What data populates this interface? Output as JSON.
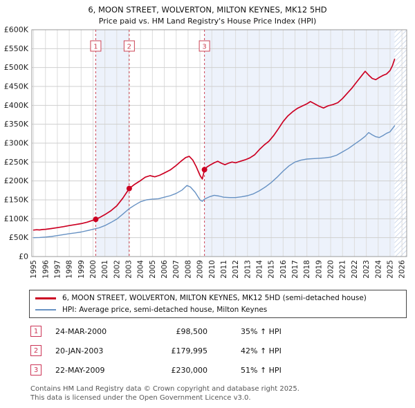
{
  "header": {
    "title": "6, MOON STREET, WOLVERTON, MILTON KEYNES, MK12 5HD",
    "subtitle": "Price paid vs. HM Land Registry's House Price Index (HPI)"
  },
  "chart_data": {
    "type": "line",
    "title": "Price paid vs. HPI",
    "x_range": [
      1994.85,
      2026.4
    ],
    "y_range": [
      0,
      600000
    ],
    "grid": true,
    "legend_position": "bottom",
    "x_ticks": [
      1995,
      1996,
      1997,
      1998,
      1999,
      2000,
      2001,
      2002,
      2003,
      2004,
      2005,
      2006,
      2007,
      2008,
      2009,
      2010,
      2011,
      2012,
      2013,
      2014,
      2015,
      2016,
      2017,
      2018,
      2019,
      2020,
      2021,
      2022,
      2023,
      2024,
      2025,
      2026
    ],
    "y_ticks": [
      [
        0,
        "£0"
      ],
      [
        50000,
        "£50K"
      ],
      [
        100000,
        "£100K"
      ],
      [
        150000,
        "£150K"
      ],
      [
        200000,
        "£200K"
      ],
      [
        250000,
        "£250K"
      ],
      [
        300000,
        "£300K"
      ],
      [
        350000,
        "£350K"
      ],
      [
        400000,
        "£400K"
      ],
      [
        450000,
        "£450K"
      ],
      [
        500000,
        "£500K"
      ],
      [
        550000,
        "£550K"
      ],
      [
        600000,
        "£600K"
      ]
    ],
    "shade_color": "#edf2fb",
    "hatch_color": "#c2cfe6",
    "grid_color_h": "#cfcfcf",
    "grid_color_v": "#dcdcdc",
    "border_color": "#999999",
    "dash_line_color": "#cc4455",
    "shaded_regions": [
      [
        2000.23,
        2003.05
      ],
      [
        2009.38,
        2025.38
      ]
    ],
    "hatch_region": [
      2025.38,
      2026.4
    ],
    "markers": [
      {
        "label": "1",
        "year": 2000.23,
        "value": 98500
      },
      {
        "label": "2",
        "year": 2003.05,
        "value": 179995
      },
      {
        "label": "3",
        "year": 2009.38,
        "value": 230000
      }
    ],
    "series": [
      {
        "name": "6, MOON STREET, WOLVERTON, MILTON KEYNES, MK12 5HD (semi-detached house)",
        "color": "#cc0022",
        "width": 1.7,
        "swatch_height": 3,
        "data_name": "series-line-property",
        "points": [
          [
            1995.0,
            70000
          ],
          [
            1995.25,
            71000
          ],
          [
            1995.5,
            70500
          ],
          [
            1995.75,
            71500
          ],
          [
            1996.0,
            72000
          ],
          [
            1996.5,
            74000
          ],
          [
            1997.0,
            76500
          ],
          [
            1997.5,
            79000
          ],
          [
            1998.0,
            82000
          ],
          [
            1998.5,
            84500
          ],
          [
            1999.0,
            87000
          ],
          [
            1999.5,
            91000
          ],
          [
            2000.23,
            98500
          ],
          [
            2000.6,
            104000
          ],
          [
            2001.0,
            111000
          ],
          [
            2001.5,
            121000
          ],
          [
            2002.0,
            134000
          ],
          [
            2002.5,
            154000
          ],
          [
            2003.05,
            179995
          ],
          [
            2003.5,
            191000
          ],
          [
            2004.0,
            201000
          ],
          [
            2004.4,
            210000
          ],
          [
            2004.8,
            214000
          ],
          [
            2005.2,
            211000
          ],
          [
            2005.6,
            215000
          ],
          [
            2006.0,
            221000
          ],
          [
            2006.5,
            229000
          ],
          [
            2007.0,
            241000
          ],
          [
            2007.4,
            252000
          ],
          [
            2007.8,
            262000
          ],
          [
            2008.1,
            265000
          ],
          [
            2008.4,
            255000
          ],
          [
            2008.7,
            237000
          ],
          [
            2009.0,
            215000
          ],
          [
            2009.2,
            205000
          ],
          [
            2009.38,
            230000
          ],
          [
            2009.6,
            237000
          ],
          [
            2009.9,
            243000
          ],
          [
            2010.2,
            248000
          ],
          [
            2010.5,
            252000
          ],
          [
            2010.8,
            247000
          ],
          [
            2011.1,
            243000
          ],
          [
            2011.4,
            247000
          ],
          [
            2011.7,
            250000
          ],
          [
            2012.0,
            248000
          ],
          [
            2012.4,
            252000
          ],
          [
            2012.8,
            256000
          ],
          [
            2013.2,
            261000
          ],
          [
            2013.6,
            269000
          ],
          [
            2014.0,
            283000
          ],
          [
            2014.4,
            295000
          ],
          [
            2014.8,
            305000
          ],
          [
            2015.2,
            320000
          ],
          [
            2015.6,
            338000
          ],
          [
            2016.0,
            357000
          ],
          [
            2016.4,
            372000
          ],
          [
            2016.8,
            383000
          ],
          [
            2017.2,
            392000
          ],
          [
            2017.6,
            398000
          ],
          [
            2018.0,
            404000
          ],
          [
            2018.3,
            410000
          ],
          [
            2018.6,
            405000
          ],
          [
            2019.0,
            398000
          ],
          [
            2019.4,
            393000
          ],
          [
            2019.8,
            399000
          ],
          [
            2020.2,
            402000
          ],
          [
            2020.6,
            407000
          ],
          [
            2021.0,
            418000
          ],
          [
            2021.4,
            432000
          ],
          [
            2021.8,
            446000
          ],
          [
            2022.2,
            462000
          ],
          [
            2022.6,
            478000
          ],
          [
            2022.9,
            490000
          ],
          [
            2023.2,
            480000
          ],
          [
            2023.5,
            471000
          ],
          [
            2023.8,
            468000
          ],
          [
            2024.1,
            474000
          ],
          [
            2024.4,
            479000
          ],
          [
            2024.7,
            483000
          ],
          [
            2025.0,
            492000
          ],
          [
            2025.2,
            505000
          ],
          [
            2025.38,
            522000
          ]
        ]
      },
      {
        "name": "HPI: Average price, semi-detached house, Milton Keynes",
        "color": "#6691c3",
        "width": 1.4,
        "swatch_height": 2,
        "data_name": "series-line-hpi",
        "points": [
          [
            1995.0,
            50000
          ],
          [
            1995.5,
            50500
          ],
          [
            1996.0,
            51500
          ],
          [
            1996.5,
            53000
          ],
          [
            1997.0,
            55500
          ],
          [
            1997.5,
            58000
          ],
          [
            1998.0,
            60500
          ],
          [
            1998.5,
            62500
          ],
          [
            1999.0,
            65000
          ],
          [
            1999.5,
            68500
          ],
          [
            2000.0,
            72000
          ],
          [
            2000.5,
            76000
          ],
          [
            2001.0,
            82000
          ],
          [
            2001.5,
            90000
          ],
          [
            2002.0,
            99000
          ],
          [
            2002.5,
            112000
          ],
          [
            2003.05,
            127000
          ],
          [
            2003.5,
            136000
          ],
          [
            2004.0,
            145000
          ],
          [
            2004.5,
            150000
          ],
          [
            2005.0,
            152000
          ],
          [
            2005.5,
            153000
          ],
          [
            2006.0,
            157000
          ],
          [
            2006.5,
            161000
          ],
          [
            2007.0,
            167000
          ],
          [
            2007.5,
            176000
          ],
          [
            2007.9,
            188000
          ],
          [
            2008.2,
            184000
          ],
          [
            2008.6,
            170000
          ],
          [
            2009.0,
            150000
          ],
          [
            2009.2,
            146000
          ],
          [
            2009.38,
            152000
          ],
          [
            2009.8,
            158000
          ],
          [
            2010.2,
            162000
          ],
          [
            2010.6,
            160000
          ],
          [
            2011.0,
            157000
          ],
          [
            2011.5,
            156000
          ],
          [
            2012.0,
            156000
          ],
          [
            2012.5,
            158000
          ],
          [
            2013.0,
            161000
          ],
          [
            2013.5,
            166000
          ],
          [
            2014.0,
            174000
          ],
          [
            2014.5,
            184000
          ],
          [
            2015.0,
            196000
          ],
          [
            2015.5,
            210000
          ],
          [
            2016.0,
            226000
          ],
          [
            2016.5,
            240000
          ],
          [
            2017.0,
            250000
          ],
          [
            2017.5,
            255000
          ],
          [
            2018.0,
            258000
          ],
          [
            2018.5,
            259000
          ],
          [
            2019.0,
            260000
          ],
          [
            2019.5,
            261000
          ],
          [
            2020.0,
            263000
          ],
          [
            2020.5,
            268000
          ],
          [
            2021.0,
            277000
          ],
          [
            2021.5,
            286000
          ],
          [
            2022.0,
            297000
          ],
          [
            2022.5,
            308000
          ],
          [
            2022.9,
            318000
          ],
          [
            2023.2,
            328000
          ],
          [
            2023.5,
            322000
          ],
          [
            2023.8,
            317000
          ],
          [
            2024.1,
            315000
          ],
          [
            2024.4,
            320000
          ],
          [
            2024.7,
            326000
          ],
          [
            2025.0,
            330000
          ],
          [
            2025.38,
            346000
          ]
        ]
      }
    ]
  },
  "transactions": [
    {
      "num": "1",
      "date": "24-MAR-2000",
      "price": "£98,500",
      "hpi": "35% ↑ HPI"
    },
    {
      "num": "2",
      "date": "20-JAN-2003",
      "price": "£179,995",
      "hpi": "42% ↑ HPI"
    },
    {
      "num": "3",
      "date": "22-MAY-2009",
      "price": "£230,000",
      "hpi": "51% ↑ HPI"
    }
  ],
  "footer": {
    "line1": "Contains HM Land Registry data © Crown copyright and database right 2025.",
    "line2": "This data is licensed under the Open Government Licence v3.0."
  }
}
